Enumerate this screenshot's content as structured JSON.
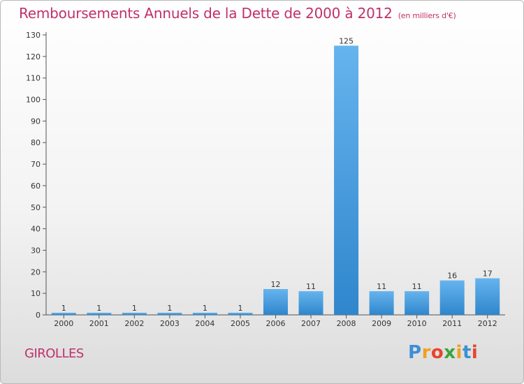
{
  "title": "Remboursements Annuels de la Dette de 2000 à 2012",
  "unit": "(en milliers d'€)",
  "city": "GIROLLES",
  "logo": {
    "letters": [
      "P",
      "r",
      "o",
      "x",
      "i",
      "t",
      "i"
    ],
    "colors": [
      "#3b8fd6",
      "#f0a020",
      "#e8452c",
      "#3aa53a",
      "#f0a020",
      "#3b8fd6",
      "#e8452c"
    ]
  },
  "colors": {
    "bar_top": "#66b4ee",
    "bar_bottom": "#2f86cc",
    "title": "#c0306a"
  },
  "chart_data": {
    "type": "bar",
    "categories": [
      "2000",
      "2001",
      "2002",
      "2003",
      "2004",
      "2005",
      "2006",
      "2007",
      "2008",
      "2009",
      "2010",
      "2011",
      "2012"
    ],
    "values": [
      1,
      1,
      1,
      1,
      1,
      1,
      12,
      11,
      125,
      11,
      11,
      16,
      17
    ],
    "value_labels": [
      "1",
      "1",
      "1",
      "1",
      "1",
      "1",
      "12",
      "11",
      "125",
      "11",
      "11",
      "16",
      "17"
    ],
    "ylim": [
      0,
      130
    ],
    "yticks": [
      "0",
      "10",
      "20",
      "30",
      "40",
      "50",
      "60",
      "70",
      "80",
      "90",
      "100",
      "110",
      "120",
      "130"
    ],
    "grid": false,
    "xlabel": "",
    "ylabel": ""
  }
}
